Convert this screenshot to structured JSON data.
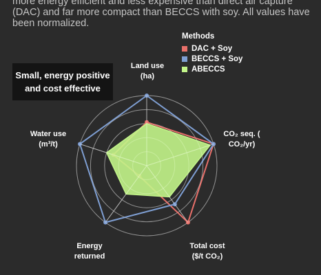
{
  "intro_text": "more energy efficient and less expensive than direct air capture (DAC) and far more compact than BECCS with soy. All values have been normalized.",
  "callout": {
    "line1": "Small, energy positive",
    "line2": "and cost effective"
  },
  "chart_data": {
    "type": "radar",
    "title": "",
    "legend_title": "Methods",
    "legend_position": "top-right",
    "axes": [
      {
        "line1": "Land use",
        "line2": "(ha)"
      },
      {
        "line1": "CO₂ seq. (",
        "line2": "CO₂/yr)"
      },
      {
        "line1": "Total cost",
        "line2": "($/t CO₂)"
      },
      {
        "line1": "Energy",
        "line2": "returned"
      },
      {
        "line1": "Water use",
        "line2": "(m³/t)"
      }
    ],
    "range": [
      0,
      1
    ],
    "grid_levels": [
      0.2,
      0.4,
      0.6,
      0.8,
      1.0
    ],
    "series": [
      {
        "name": "DAC + Soy",
        "color": "#e8706a",
        "values": [
          0.62,
          1.0,
          1.0,
          0.18,
          0.5
        ]
      },
      {
        "name": "BECCS + Soy",
        "color": "#7f9fd3",
        "values": [
          1.0,
          1.0,
          0.68,
          1.0,
          1.0
        ]
      },
      {
        "name": "ABECCS",
        "color": "#c3f58a",
        "values": [
          0.6,
          0.95,
          0.55,
          0.5,
          0.6
        ]
      }
    ]
  }
}
